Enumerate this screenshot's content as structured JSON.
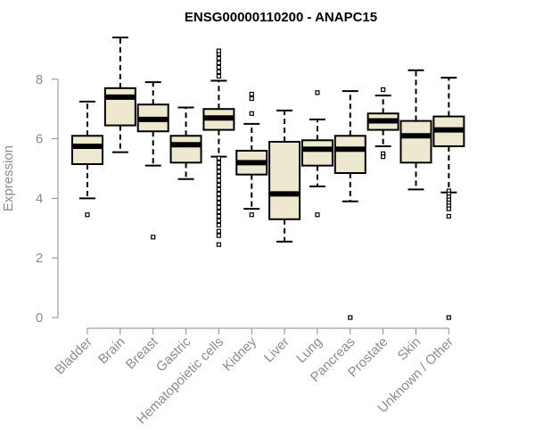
{
  "chart_data": {
    "type": "boxplot",
    "title": "ENSG00000110200 - ANAPC15",
    "xlabel": "",
    "ylabel": "Expression",
    "ylim": [
      0,
      9.5
    ],
    "yticks": [
      0,
      2,
      4,
      6,
      8
    ],
    "box_fill": "#efe8d0",
    "categories": [
      "Bladder",
      "Brain",
      "Breast",
      "Gastric",
      "Hematopoietic cells",
      "Kidney",
      "Liver",
      "Lung",
      "Pancreas",
      "Prostate",
      "Skin",
      "Unknown / Other"
    ],
    "boxes": [
      {
        "name": "Bladder",
        "whisker_low": 4.0,
        "q1": 5.15,
        "median": 5.75,
        "q3": 6.1,
        "whisker_high": 7.25,
        "outliers": [
          3.45
        ]
      },
      {
        "name": "Brain",
        "whisker_low": 5.55,
        "q1": 6.45,
        "median": 7.4,
        "q3": 7.7,
        "whisker_high": 9.4,
        "outliers": []
      },
      {
        "name": "Breast",
        "whisker_low": 5.1,
        "q1": 6.25,
        "median": 6.65,
        "q3": 7.15,
        "whisker_high": 7.9,
        "outliers": [
          2.7
        ]
      },
      {
        "name": "Gastric",
        "whisker_low": 4.65,
        "q1": 5.2,
        "median": 5.8,
        "q3": 6.1,
        "whisker_high": 7.05,
        "outliers": []
      },
      {
        "name": "Hematopoietic cells",
        "whisker_low": 5.4,
        "q1": 6.3,
        "median": 6.7,
        "q3": 7.0,
        "whisker_high": 7.95,
        "outliers": [
          8.1,
          8.25,
          8.4,
          8.55,
          8.7,
          8.85,
          8.95,
          5.35,
          5.2,
          5.05,
          4.9,
          4.75,
          4.6,
          4.45,
          4.3,
          4.15,
          4.0,
          3.85,
          3.7,
          3.55,
          3.4,
          3.25,
          3.1,
          2.9,
          2.75,
          2.45
        ]
      },
      {
        "name": "Kidney",
        "whisker_low": 3.65,
        "q1": 4.8,
        "median": 5.2,
        "q3": 5.6,
        "whisker_high": 6.5,
        "outliers": [
          7.5,
          7.35,
          6.85,
          3.45
        ]
      },
      {
        "name": "Liver",
        "whisker_low": 2.55,
        "q1": 3.3,
        "median": 4.15,
        "q3": 5.9,
        "whisker_high": 6.95,
        "outliers": []
      },
      {
        "name": "Lung",
        "whisker_low": 4.4,
        "q1": 5.1,
        "median": 5.65,
        "q3": 5.95,
        "whisker_high": 6.65,
        "outliers": [
          7.55,
          3.45
        ]
      },
      {
        "name": "Pancreas",
        "whisker_low": 3.9,
        "q1": 4.85,
        "median": 5.65,
        "q3": 6.1,
        "whisker_high": 7.6,
        "outliers": [
          0.0
        ]
      },
      {
        "name": "Prostate",
        "whisker_low": 5.75,
        "q1": 6.3,
        "median": 6.6,
        "q3": 6.85,
        "whisker_high": 7.45,
        "outliers": [
          7.65,
          5.5,
          5.4
        ]
      },
      {
        "name": "Skin",
        "whisker_low": 4.3,
        "q1": 5.2,
        "median": 6.1,
        "q3": 6.6,
        "whisker_high": 8.3,
        "outliers": []
      },
      {
        "name": "Unknown / Other",
        "whisker_low": 4.2,
        "q1": 5.75,
        "median": 6.3,
        "q3": 6.75,
        "whisker_high": 8.05,
        "outliers": [
          4.25,
          4.15,
          4.05,
          3.95,
          3.85,
          3.75,
          3.65,
          3.4,
          0.0
        ]
      }
    ]
  }
}
